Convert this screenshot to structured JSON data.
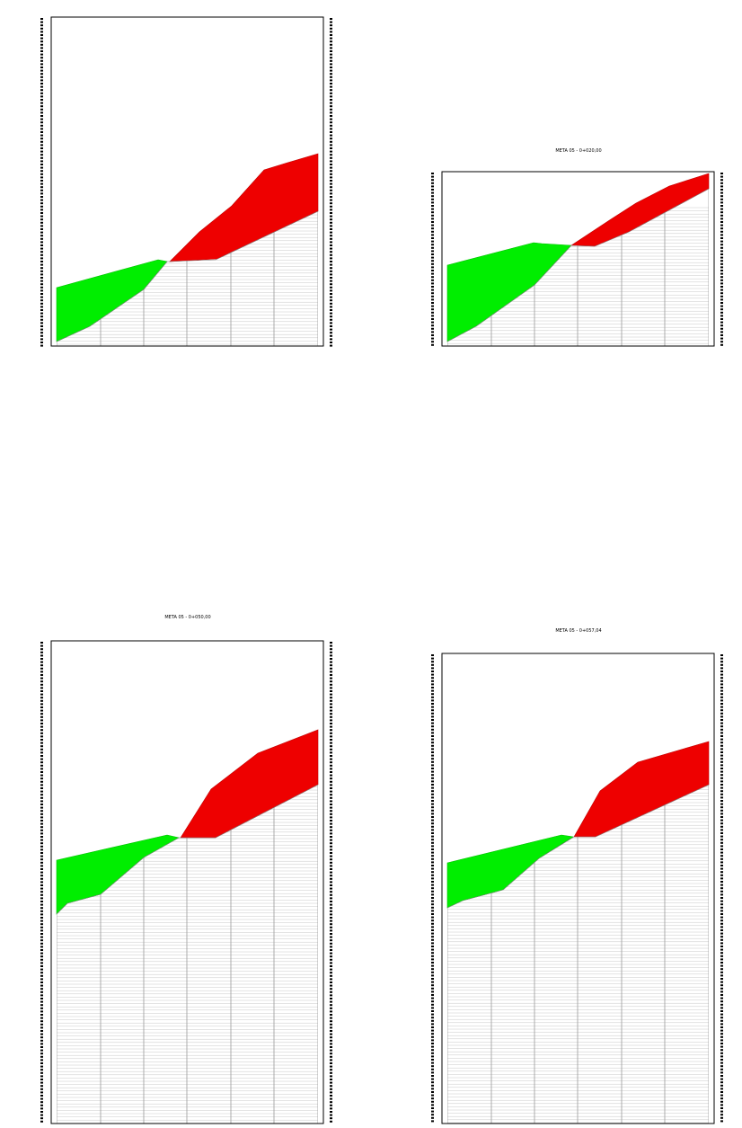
{
  "sections": [
    {
      "title": "",
      "fill_color": "#00ee00",
      "cut_color": "#ee0000"
    },
    {
      "title": "META 05 - 0+020,00",
      "fill_color": "#00ee00",
      "cut_color": "#ee0000"
    },
    {
      "title": "META 05 - 0+050,00",
      "fill_color": "#00ee00",
      "cut_color": "#ee0000"
    },
    {
      "title": "META 05 - 0+057,04",
      "fill_color": "#00ee00",
      "cut_color": "#ee0000"
    }
  ],
  "legend_colors": {
    "fill": "#00ee00",
    "cut": "#ee0000",
    "frame": "#000000",
    "grid": "#9a9a9a"
  }
}
